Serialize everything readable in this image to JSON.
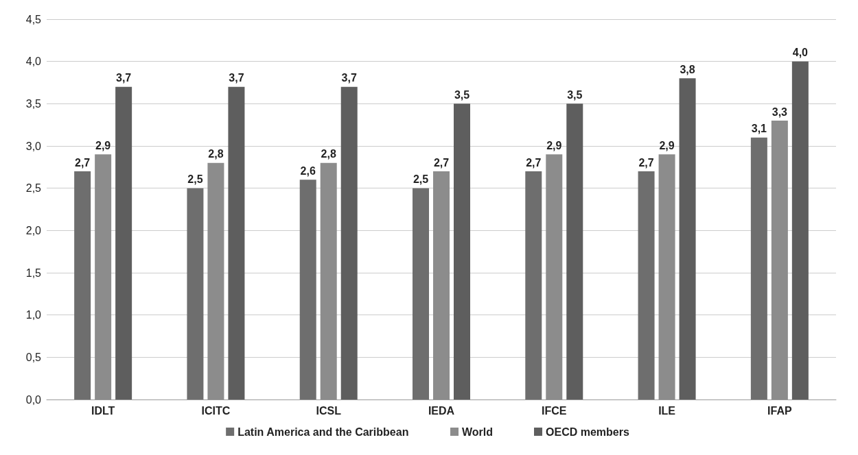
{
  "chart_data": {
    "type": "bar",
    "categories": [
      "IDLT",
      "ICITC",
      "ICSL",
      "IEDA",
      "IFCE",
      "ILE",
      "IFAP"
    ],
    "series": [
      {
        "name": "Latin America and the Caribbean",
        "color": "#6e6e6e",
        "values": [
          2.7,
          2.5,
          2.6,
          2.5,
          2.7,
          2.7,
          3.1
        ],
        "value_labels": [
          "2,7",
          "2,5",
          "2,6",
          "2,5",
          "2,7",
          "2,7",
          "3,1"
        ]
      },
      {
        "name": "World",
        "color": "#8c8c8c",
        "values": [
          2.9,
          2.8,
          2.8,
          2.7,
          2.9,
          2.9,
          3.3
        ],
        "value_labels": [
          "2,9",
          "2,8",
          "2,8",
          "2,7",
          "2,9",
          "2,9",
          "3,3"
        ]
      },
      {
        "name": "OECD members",
        "color": "#5e5e5e",
        "values": [
          3.7,
          3.7,
          3.7,
          3.5,
          3.5,
          3.8,
          4.0
        ],
        "value_labels": [
          "3,7",
          "3,7",
          "3,7",
          "3,5",
          "3,5",
          "3,8",
          "4,0"
        ]
      }
    ],
    "ylim": [
      0,
      4.5
    ],
    "yticks": [
      {
        "value": 0,
        "label": "0,0"
      },
      {
        "value": 0.5,
        "label": "0,5"
      },
      {
        "value": 1,
        "label": "1,0"
      },
      {
        "value": 1.5,
        "label": "1,5"
      },
      {
        "value": 2,
        "label": "2,0"
      },
      {
        "value": 2.5,
        "label": "2,5"
      },
      {
        "value": 3,
        "label": "3,0"
      },
      {
        "value": 3.5,
        "label": "3,5"
      },
      {
        "value": 4,
        "label": "4,0"
      },
      {
        "value": 4.5,
        "label": "4,5"
      }
    ],
    "grid": "y",
    "legend": "bottom"
  }
}
